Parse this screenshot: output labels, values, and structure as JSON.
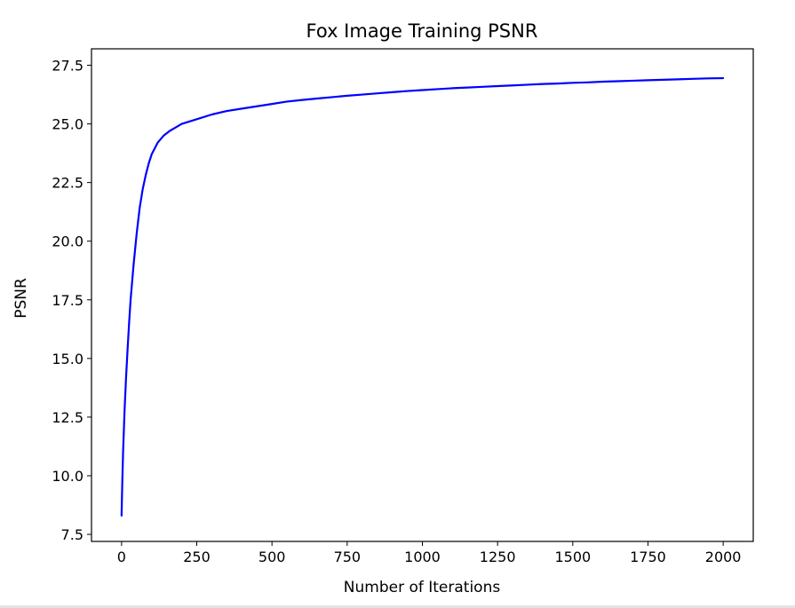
{
  "chart_data": {
    "type": "line",
    "title": "Fox Image Training PSNR",
    "xlabel": "Number of Iterations",
    "ylabel": "PSNR",
    "xlim": [
      -100,
      2100
    ],
    "ylim": [
      7.2,
      28.2
    ],
    "xticks": [
      0,
      250,
      500,
      750,
      1000,
      1250,
      1500,
      1750,
      2000
    ],
    "xtick_labels": [
      "0",
      "250",
      "500",
      "750",
      "1000",
      "1250",
      "1500",
      "1750",
      "2000"
    ],
    "yticks": [
      7.5,
      10.0,
      12.5,
      15.0,
      17.5,
      20.0,
      22.5,
      25.0,
      27.5
    ],
    "ytick_labels": [
      "7.5",
      "10.0",
      "12.5",
      "15.0",
      "17.5",
      "20.0",
      "22.5",
      "25.0",
      "27.5"
    ],
    "grid": false,
    "series": [
      {
        "color": "#0000ff",
        "x": [
          0,
          2,
          5,
          10,
          15,
          20,
          25,
          30,
          40,
          50,
          60,
          70,
          80,
          90,
          100,
          120,
          140,
          160,
          180,
          200,
          250,
          300,
          350,
          400,
          450,
          500,
          550,
          600,
          650,
          700,
          750,
          800,
          850,
          900,
          950,
          1000,
          1050,
          1100,
          1150,
          1200,
          1250,
          1300,
          1350,
          1400,
          1450,
          1500,
          1550,
          1600,
          1650,
          1700,
          1750,
          1800,
          1850,
          1900,
          1950,
          2000
        ],
        "y": [
          8.3,
          9.5,
          11.0,
          12.8,
          14.2,
          15.4,
          16.5,
          17.5,
          19.0,
          20.3,
          21.4,
          22.2,
          22.8,
          23.3,
          23.7,
          24.2,
          24.5,
          24.7,
          24.85,
          25.0,
          25.2,
          25.4,
          25.55,
          25.65,
          25.75,
          25.85,
          25.95,
          26.02,
          26.08,
          26.14,
          26.2,
          26.25,
          26.3,
          26.35,
          26.4,
          26.44,
          26.48,
          26.52,
          26.55,
          26.58,
          26.61,
          26.64,
          26.67,
          26.7,
          26.72,
          26.75,
          26.77,
          26.8,
          26.82,
          26.84,
          26.86,
          26.88,
          26.9,
          26.92,
          26.94,
          26.95
        ]
      }
    ]
  }
}
